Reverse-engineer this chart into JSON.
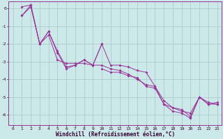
{
  "xlabel": "Windchill (Refroidissement éolien,°C)",
  "background_color": "#cce8e8",
  "grid_color": "#aacccc",
  "line_color": "#993399",
  "ylim": [
    -6.6,
    0.4
  ],
  "xlim": [
    -0.5,
    23.5
  ],
  "yticks": [
    0,
    -1,
    -2,
    -3,
    -4,
    -5,
    -6
  ],
  "xticks": [
    0,
    1,
    2,
    3,
    4,
    5,
    6,
    7,
    8,
    9,
    10,
    11,
    12,
    13,
    14,
    15,
    16,
    17,
    18,
    19,
    20,
    21,
    22,
    23
  ],
  "series1_x": [
    1,
    2,
    3,
    4,
    5,
    6,
    7,
    8,
    9,
    10,
    11,
    12,
    13,
    14,
    15,
    16,
    17,
    18,
    19,
    20,
    21,
    22,
    23
  ],
  "series1_y": [
    -0.4,
    0.1,
    -2.0,
    -1.5,
    -2.9,
    -3.1,
    -3.1,
    -3.1,
    -3.2,
    -3.2,
    -3.4,
    -3.5,
    -3.7,
    -4.0,
    -4.3,
    -4.4,
    -5.2,
    -5.6,
    -5.8,
    -5.9,
    -5.0,
    -5.3,
    -5.4
  ],
  "series2_x": [
    1,
    2,
    3,
    4,
    5,
    6,
    7,
    8,
    9,
    10,
    11,
    12,
    13,
    14,
    15,
    16,
    17,
    18,
    19,
    20,
    21,
    22,
    23
  ],
  "series2_y": [
    0.1,
    0.2,
    -2.0,
    -1.3,
    -2.5,
    -3.4,
    -3.2,
    -2.9,
    -3.2,
    -2.0,
    -3.2,
    -3.2,
    -3.3,
    -3.5,
    -3.6,
    -4.4,
    -5.4,
    -5.6,
    -5.7,
    -6.1,
    -5.0,
    -5.4,
    -5.3
  ],
  "series3_x": [
    1,
    2,
    3,
    4,
    5,
    6,
    7,
    8,
    9,
    10
  ],
  "series3_y": [
    -0.4,
    0.2,
    -2.0,
    -1.3,
    -2.4,
    -3.3,
    -3.2,
    -2.9,
    -3.2,
    -2.0
  ],
  "series4_x": [
    10,
    11,
    12,
    13,
    14,
    15,
    16,
    17,
    18,
    19,
    20,
    21,
    22,
    23
  ],
  "series4_y": [
    -3.4,
    -3.6,
    -3.6,
    -3.8,
    -3.9,
    -4.4,
    -4.5,
    -5.4,
    -5.8,
    -5.9,
    -6.2,
    -5.0,
    -5.4,
    -5.4
  ],
  "marker": "D",
  "marker_size": 2,
  "linewidth": 0.7,
  "tick_fontsize": 4.5,
  "xlabel_fontsize": 5.5,
  "tick_color": "#330033",
  "label_color": "#330033"
}
